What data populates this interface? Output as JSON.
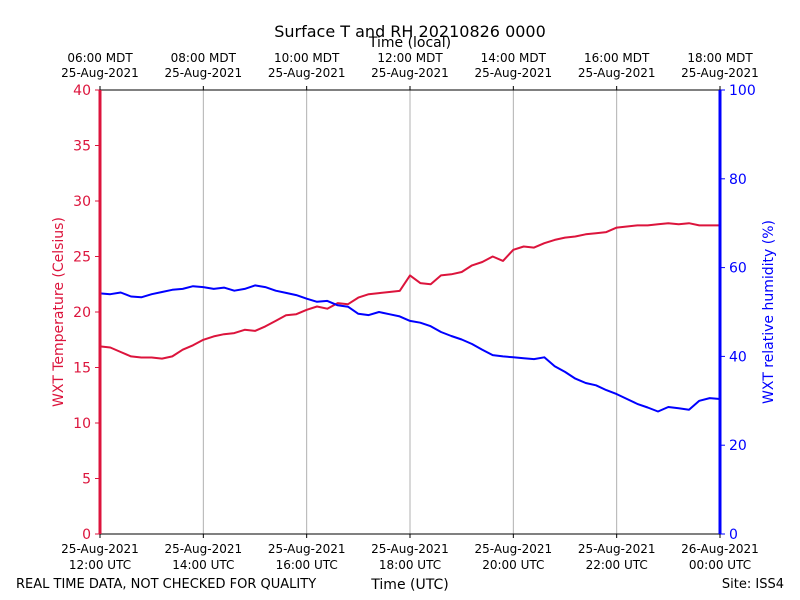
{
  "chart_data": {
    "type": "line",
    "title": "Surface T and RH 20210826 0000",
    "xlabel_bottom": "Time (UTC)",
    "xlabel_top": "Time (local)",
    "ylabel_left": "WXT Temperature (Celsius)",
    "ylabel_right": "WXT relative humidity (%)",
    "x_range_hours": [
      0,
      12
    ],
    "ylim_left": [
      0,
      40
    ],
    "ylim_right": [
      0,
      100
    ],
    "yticks_left": [
      "0",
      "5",
      "10",
      "15",
      "20",
      "25",
      "30",
      "35",
      "40"
    ],
    "yticks_right": [
      "0",
      "20",
      "40",
      "60",
      "80",
      "100"
    ],
    "grid_vertical": true,
    "colors": {
      "temperature": "#dc143c",
      "humidity": "#0000ff"
    },
    "bottom_ticks": [
      {
        "hour": 0,
        "date": "25-Aug-2021",
        "time": "12:00 UTC"
      },
      {
        "hour": 2,
        "date": "25-Aug-2021",
        "time": "14:00 UTC"
      },
      {
        "hour": 4,
        "date": "25-Aug-2021",
        "time": "16:00 UTC"
      },
      {
        "hour": 6,
        "date": "25-Aug-2021",
        "time": "18:00 UTC"
      },
      {
        "hour": 8,
        "date": "25-Aug-2021",
        "time": "20:00 UTC"
      },
      {
        "hour": 10,
        "date": "25-Aug-2021",
        "time": "22:00 UTC"
      },
      {
        "hour": 12,
        "date": "26-Aug-2021",
        "time": "00:00 UTC"
      }
    ],
    "top_ticks": [
      {
        "hour": 0,
        "time": "06:00 MDT",
        "date": "25-Aug-2021"
      },
      {
        "hour": 2,
        "time": "08:00 MDT",
        "date": "25-Aug-2021"
      },
      {
        "hour": 4,
        "time": "10:00 MDT",
        "date": "25-Aug-2021"
      },
      {
        "hour": 6,
        "time": "12:00 MDT",
        "date": "25-Aug-2021"
      },
      {
        "hour": 8,
        "time": "14:00 MDT",
        "date": "25-Aug-2021"
      },
      {
        "hour": 10,
        "time": "16:00 MDT",
        "date": "25-Aug-2021"
      },
      {
        "hour": 12,
        "time": "18:00 MDT",
        "date": "25-Aug-2021"
      }
    ],
    "series": [
      {
        "name": "WXT Temperature (Celsius)",
        "axis": "left",
        "x": [
          0,
          0.2,
          0.4,
          0.6,
          0.8,
          1.0,
          1.2,
          1.4,
          1.6,
          1.8,
          2.0,
          2.2,
          2.4,
          2.6,
          2.8,
          3.0,
          3.2,
          3.4,
          3.6,
          3.8,
          4.0,
          4.2,
          4.4,
          4.6,
          4.8,
          5.0,
          5.2,
          5.4,
          5.6,
          5.8,
          6.0,
          6.2,
          6.4,
          6.6,
          6.8,
          7.0,
          7.2,
          7.4,
          7.6,
          7.8,
          8.0,
          8.2,
          8.4,
          8.6,
          8.8,
          9.0,
          9.2,
          9.4,
          9.6,
          9.8,
          10.0,
          10.2,
          10.4,
          10.6,
          10.8,
          11.0,
          11.2,
          11.4,
          11.6,
          11.8,
          12.0
        ],
        "values": [
          16.9,
          16.8,
          16.4,
          16.0,
          15.9,
          15.9,
          15.8,
          16.0,
          16.6,
          17.0,
          17.5,
          17.8,
          18.0,
          18.1,
          18.4,
          18.3,
          18.7,
          19.2,
          19.7,
          19.8,
          20.2,
          20.5,
          20.3,
          20.8,
          20.7,
          21.3,
          21.6,
          21.7,
          21.8,
          21.9,
          23.3,
          22.6,
          22.5,
          23.3,
          23.4,
          23.6,
          24.2,
          24.5,
          25.0,
          24.6,
          25.6,
          25.9,
          25.8,
          26.2,
          26.5,
          26.7,
          26.8,
          27.0,
          27.1,
          27.2,
          27.6,
          27.7,
          27.8,
          27.8,
          27.9,
          28.0,
          27.9,
          28.0,
          27.8,
          27.8,
          27.8
        ]
      },
      {
        "name": "WXT relative humidity (%)",
        "axis": "right",
        "x": [
          0,
          0.2,
          0.4,
          0.6,
          0.8,
          1.0,
          1.2,
          1.4,
          1.6,
          1.8,
          2.0,
          2.2,
          2.4,
          2.6,
          2.8,
          3.0,
          3.2,
          3.4,
          3.6,
          3.8,
          4.0,
          4.2,
          4.4,
          4.6,
          4.8,
          5.0,
          5.2,
          5.4,
          5.6,
          5.8,
          6.0,
          6.2,
          6.4,
          6.6,
          6.8,
          7.0,
          7.2,
          7.4,
          7.6,
          7.8,
          8.0,
          8.2,
          8.4,
          8.6,
          8.8,
          9.0,
          9.2,
          9.4,
          9.6,
          9.8,
          10.0,
          10.2,
          10.4,
          10.6,
          10.8,
          11.0,
          11.2,
          11.4,
          11.6,
          11.8,
          12.0
        ],
        "values": [
          54.2,
          54.0,
          54.4,
          53.5,
          53.3,
          54.0,
          54.5,
          55.0,
          55.2,
          55.8,
          55.6,
          55.2,
          55.5,
          54.8,
          55.2,
          56.0,
          55.6,
          54.8,
          54.3,
          53.8,
          53.0,
          52.3,
          52.5,
          51.5,
          51.2,
          49.6,
          49.3,
          50.0,
          49.5,
          49.0,
          48.0,
          47.6,
          46.8,
          45.5,
          44.6,
          43.8,
          42.8,
          41.5,
          40.3,
          40.0,
          39.8,
          39.6,
          39.4,
          39.8,
          37.8,
          36.5,
          35.0,
          34.0,
          33.5,
          32.4,
          31.5,
          30.4,
          29.3,
          28.5,
          27.6,
          28.6,
          28.3,
          28.0,
          30.0,
          30.6,
          30.4
        ]
      }
    ]
  },
  "footer": {
    "left": "REAL TIME DATA, NOT CHECKED FOR QUALITY",
    "center": "Time (UTC)",
    "right": "Site: ISS4"
  }
}
